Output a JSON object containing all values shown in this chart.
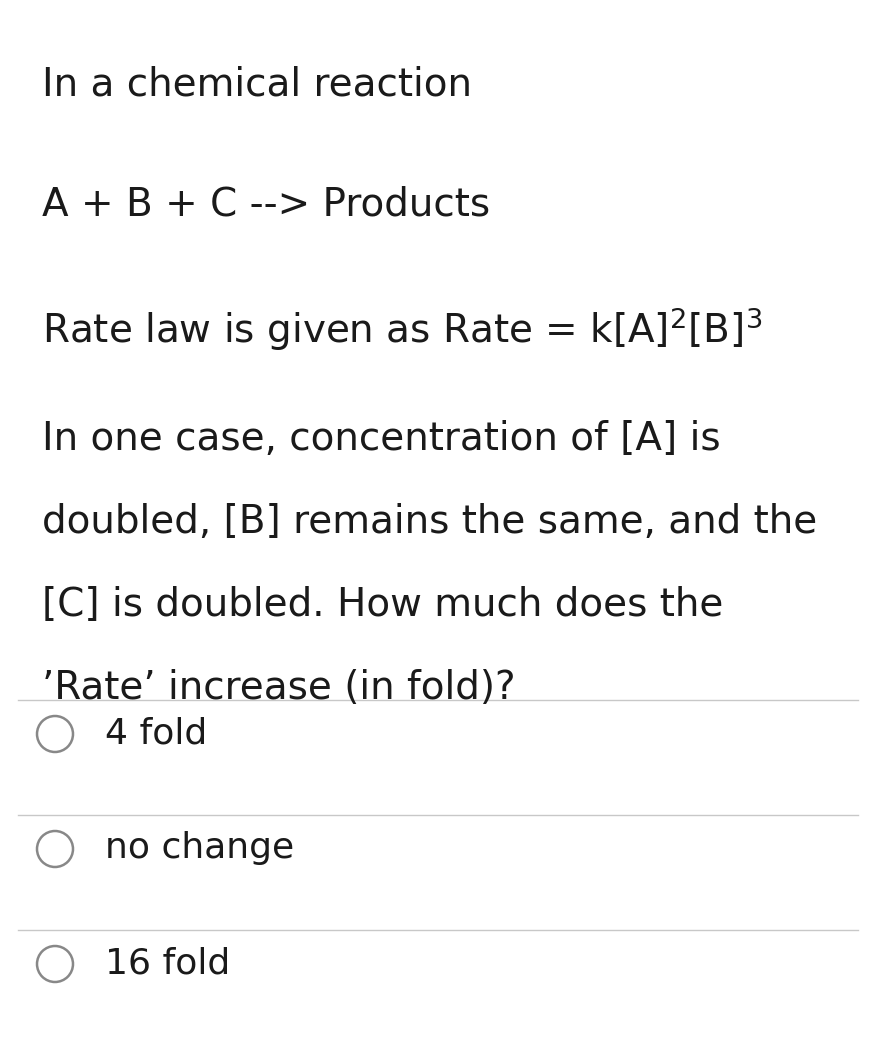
{
  "background_color": "#ffffff",
  "text_color": "#1a1a1a",
  "line_color": "#c8c8c8",
  "line1": "In a chemical reaction",
  "line2": "A + B + C --> Products",
  "line3": "Rate law is given as Rate = k[A]$^2$[B]$^3$",
  "line4a": "In one case, concentration of [A] is",
  "line4b": "doubled, [B] remains the same, and the",
  "line4c": "[C] is doubled. How much does the",
  "line4d": "’Rate’ increase (in fold)?",
  "options": [
    "4 fold",
    "no change",
    "16 fold"
  ],
  "font_size_question": 28,
  "font_size_options": 26,
  "figsize": [
    8.76,
    10.62
  ],
  "dpi": 100
}
